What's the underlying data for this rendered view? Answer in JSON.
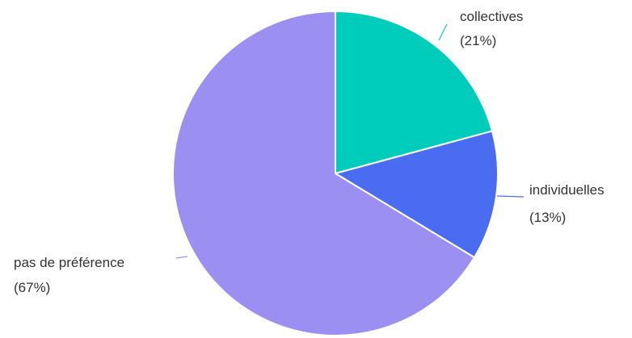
{
  "chart_data": {
    "type": "pie",
    "title": "",
    "start_angle_deg": 0,
    "direction": "clockwise",
    "slices": [
      {
        "name": "collectives",
        "value": 21,
        "label_line1": "collectives",
        "label_line2": "(21%)",
        "color": "#00ccbb"
      },
      {
        "name": "individuelles",
        "value": 13,
        "label_line1": "individuelles",
        "label_line2": "(13%)",
        "color": "#4a6cf0"
      },
      {
        "name": "pas de préférence",
        "value": 67,
        "label_line1": "pas de préférence",
        "label_line2": "(67%)",
        "color": "#9b8ff2"
      }
    ]
  }
}
